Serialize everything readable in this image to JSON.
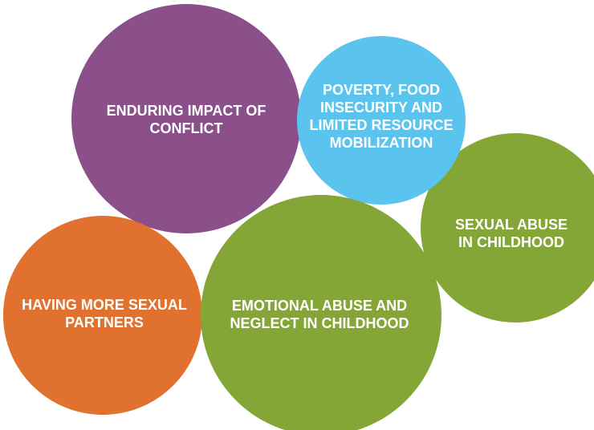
{
  "nodes": [
    {
      "lines": [
        "ENDURING IMPACT OF",
        "CONFLICT"
      ]
    },
    {
      "lines": [
        "HAVING MORE SEXUAL",
        "PARTNERS"
      ]
    },
    {
      "lines": [
        "SEXUAL ABUSE",
        "IN CHILDHOOD"
      ]
    },
    {
      "lines": [
        "POVERTY, FOOD",
        "INSECURITY AND",
        "LIMITED RESOURCE",
        "MOBILIZATION"
      ]
    },
    {
      "lines": [
        "EMOTIONAL ABUSE AND",
        "NEGLECT IN CHILDHOOD"
      ]
    }
  ]
}
